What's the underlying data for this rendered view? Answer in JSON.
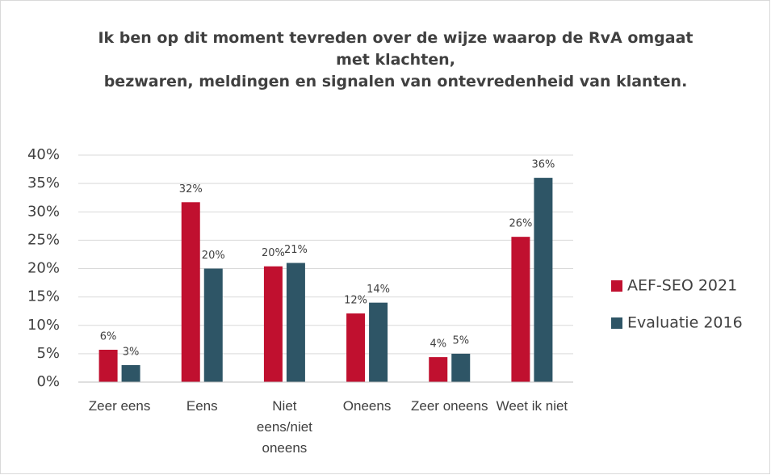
{
  "chart_data": {
    "type": "bar",
    "title": "Ik ben op dit moment tevreden over de wijze waarop de RvA omgaat met klachten,\nbezwaren, meldingen en signalen van ontevredenheid van klanten.",
    "categories": [
      "Zeer eens",
      "Eens",
      "Niet eens/niet oneens",
      "Oneens",
      "Zeer oneens",
      "Weet ik niet"
    ],
    "series": [
      {
        "name": "AEF-SEO 2021",
        "color": "#c0102f",
        "values": [
          5.7,
          31.7,
          20.4,
          12.1,
          4.4,
          25.6
        ],
        "value_labels": [
          "6%",
          "32%",
          "20%",
          "12%",
          "4%",
          "26%"
        ]
      },
      {
        "name": "Evaluatie 2016",
        "color": "#2e5566",
        "values": [
          3.0,
          20.0,
          21.0,
          14.0,
          5.0,
          36.0
        ],
        "value_labels": [
          "3%",
          "20%",
          "21%",
          "14%",
          "5%",
          "36%"
        ]
      }
    ],
    "ylim": [
      0,
      40
    ],
    "yticks": [
      {
        "value": 0,
        "label": "0%"
      },
      {
        "value": 5,
        "label": "5%"
      },
      {
        "value": 10,
        "label": "10%"
      },
      {
        "value": 15,
        "label": "15%"
      },
      {
        "value": 20,
        "label": "20%"
      },
      {
        "value": 25,
        "label": "25%"
      },
      {
        "value": 30,
        "label": "30%"
      },
      {
        "value": 35,
        "label": "35%"
      },
      {
        "value": 40,
        "label": "40%"
      }
    ],
    "grid": true,
    "legend": "right"
  }
}
